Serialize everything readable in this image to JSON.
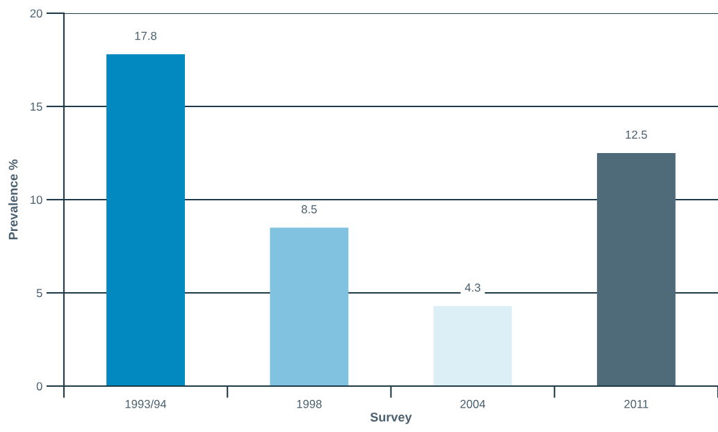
{
  "chart_data": {
    "type": "bar",
    "categories": [
      "1993/94",
      "1998",
      "2004",
      "2011"
    ],
    "values": [
      17.8,
      8.5,
      4.3,
      12.5
    ],
    "colors": [
      "#0289c0",
      "#80c2e0",
      "#dceef6",
      "#4f6b79"
    ],
    "xlabel": "Survey",
    "ylabel": "Prevalence %",
    "ylim": [
      0,
      20
    ],
    "yticks": [
      0,
      5,
      10,
      15,
      20
    ],
    "grid": "y",
    "data_labels": true
  }
}
